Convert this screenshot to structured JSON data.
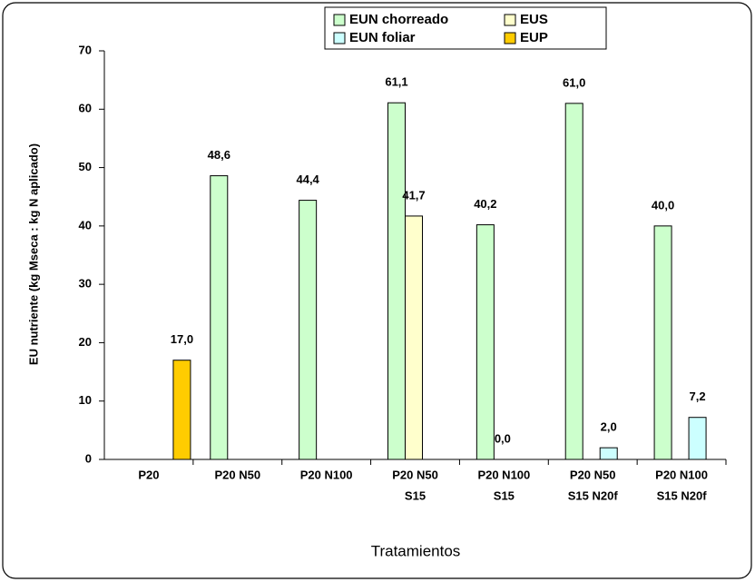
{
  "chart_data": {
    "type": "bar",
    "y_label": "EU nutriente (kg Mseca : kg N aplicado)",
    "x_label": "Tratamientos",
    "categories": [
      [
        "P20"
      ],
      [
        "P20 N50"
      ],
      [
        "P20 N100"
      ],
      [
        "P20 N50",
        "S15"
      ],
      [
        "P20 N100",
        "S15"
      ],
      [
        "P20 N50",
        "S15 N20f"
      ],
      [
        "P20 N100",
        "S15 N20f"
      ]
    ],
    "series": [
      {
        "name": "EUN chorreado",
        "color": "#ccffcc",
        "values": [
          null,
          48.6,
          44.4,
          61.1,
          40.2,
          61.0,
          40.0
        ],
        "value_labels": [
          null,
          "48,6",
          "44,4",
          "61,1",
          "40,2",
          "61,0",
          "40,0"
        ]
      },
      {
        "name": "EUS",
        "color": "#ffffcc",
        "values": [
          null,
          null,
          null,
          41.7,
          0.0,
          null,
          null
        ],
        "value_labels": [
          null,
          null,
          null,
          "41,7",
          "0,0",
          null,
          null
        ]
      },
      {
        "name": "EUN foliar",
        "color": "#ccffff",
        "values": [
          null,
          null,
          null,
          null,
          null,
          2.0,
          7.2
        ],
        "value_labels": [
          null,
          null,
          null,
          null,
          null,
          "2,0",
          "7,2"
        ]
      },
      {
        "name": "EUP",
        "color": "#ffcc00",
        "values": [
          17.0,
          null,
          null,
          null,
          null,
          null,
          null
        ],
        "value_labels": [
          "17,0",
          null,
          null,
          null,
          null,
          null,
          null
        ]
      }
    ],
    "ylim": [
      0,
      70
    ],
    "yticks": [
      0,
      10,
      20,
      30,
      40,
      50,
      60,
      70
    ],
    "grid": false
  }
}
